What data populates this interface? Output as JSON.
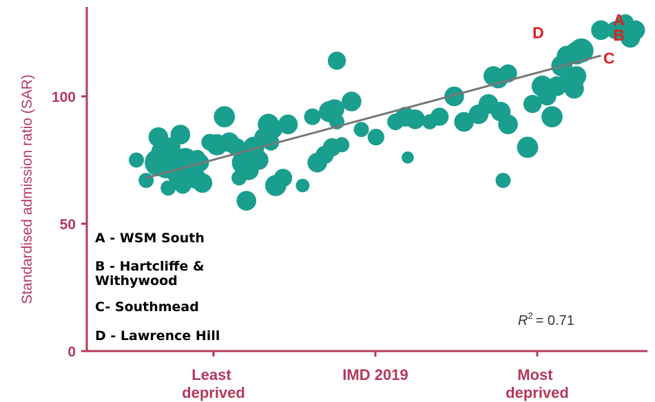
{
  "chart_data": {
    "type": "scatter",
    "ylabel": "Standardised admission ratio (SAR)",
    "xlabel": "IMD 2019",
    "x_tick_labels": [
      [
        "Least",
        "deprived"
      ],
      [
        "IMD 2019"
      ],
      [
        "Most",
        "deprived"
      ]
    ],
    "y_ticks": [
      "0",
      "50",
      "100"
    ],
    "ylim": [
      0,
      135
    ],
    "xlim": [
      0,
      100
    ],
    "grid": false,
    "trendline": {
      "x0": 2,
      "y0": 68,
      "x1": 95,
      "y1": 116
    },
    "r_squared_label": "R",
    "r_squared_sup": "2",
    "r_squared_value": "= 0.71",
    "legend": [
      [
        "A - WSM South"
      ],
      [
        "B - Hartcliffe &",
        "Withywood"
      ],
      [
        "C- Southmead"
      ],
      [
        "D - Lawrence Hill"
      ]
    ],
    "point_labels": [
      {
        "text": "A",
        "x": 97.5,
        "y": 130
      },
      {
        "text": "B",
        "x": 97.5,
        "y": 124
      },
      {
        "text": "C",
        "x": 95.5,
        "y": 115
      },
      {
        "text": "D",
        "x": 81,
        "y": 125
      }
    ],
    "marker_color": "#1a9e8e",
    "trend_color": "#777777",
    "axis_color": "#b5395a",
    "points": [
      [
        0,
        75,
        1
      ],
      [
        2,
        67,
        1
      ],
      [
        4.5,
        84,
        1.3
      ],
      [
        5.5,
        78,
        1.6
      ],
      [
        4.5,
        74,
        1.8
      ],
      [
        6,
        72,
        1.4
      ],
      [
        7,
        80,
        1.3
      ],
      [
        6.5,
        64,
        1
      ],
      [
        9,
        85,
        1.3
      ],
      [
        8.5,
        70,
        1.5
      ],
      [
        10,
        75,
        1.6
      ],
      [
        9.5,
        65,
        1.1
      ],
      [
        12,
        68,
        1.4
      ],
      [
        13,
        74,
        1.2
      ],
      [
        13.5,
        66,
        1.3
      ],
      [
        12.5,
        76,
        1
      ],
      [
        15,
        82,
        1.1
      ],
      [
        16.5,
        81,
        1.4
      ],
      [
        18,
        92,
        1.4
      ],
      [
        19,
        82,
        1.3
      ],
      [
        20.5,
        80,
        1.2
      ],
      [
        22,
        77,
        1.2
      ],
      [
        21,
        68,
        1
      ],
      [
        22,
        74,
        1.6
      ],
      [
        23,
        71,
        1.3
      ],
      [
        22.5,
        59,
        1.3
      ],
      [
        24,
        80,
        1.4
      ],
      [
        25,
        75,
        1.3
      ],
      [
        26,
        84,
        1.2
      ],
      [
        27,
        89,
        1.4
      ],
      [
        28,
        87,
        1.2
      ],
      [
        27.5,
        82,
        1.1
      ],
      [
        28.5,
        65,
        1.4
      ],
      [
        30,
        68,
        1.2
      ],
      [
        31,
        89,
        1.3
      ],
      [
        34,
        65,
        0.9
      ],
      [
        36,
        92,
        1.1
      ],
      [
        37,
        74,
        1.3
      ],
      [
        38.5,
        77,
        1.2
      ],
      [
        39.5,
        94,
        1.4
      ],
      [
        40.5,
        95,
        1.3
      ],
      [
        41,
        90,
        1
      ],
      [
        40,
        80,
        1.2
      ],
      [
        42,
        81,
        1
      ],
      [
        41,
        114,
        1.2
      ],
      [
        44,
        98,
        1.3
      ],
      [
        46,
        87,
        1
      ],
      [
        49,
        84,
        1.1
      ],
      [
        53,
        90,
        1.1
      ],
      [
        55,
        92,
        1.3
      ],
      [
        55.5,
        76,
        0.8
      ],
      [
        57,
        91,
        1.3
      ],
      [
        60,
        90,
        1
      ],
      [
        62,
        92,
        1.2
      ],
      [
        65,
        100,
        1.3
      ],
      [
        67,
        90,
        1.3
      ],
      [
        70,
        93,
        1.3
      ],
      [
        72,
        97,
        1.3
      ],
      [
        73,
        108,
        1.3
      ],
      [
        74,
        107,
        1.3
      ],
      [
        74.5,
        94,
        1.3
      ],
      [
        75,
        67,
        1
      ],
      [
        76,
        109,
        1.2
      ],
      [
        76,
        89,
        1.3
      ],
      [
        80,
        80,
        1.4
      ],
      [
        81,
        97,
        1.2
      ],
      [
        83,
        104,
        1.4
      ],
      [
        84,
        100,
        1.2
      ],
      [
        85,
        92,
        1.4
      ],
      [
        86,
        104,
        1.3
      ],
      [
        87,
        112,
        1.4
      ],
      [
        88,
        116,
        1.3
      ],
      [
        89,
        106,
        1.6
      ],
      [
        89.5,
        103,
        1.3
      ],
      [
        90,
        117,
        1.5
      ],
      [
        90,
        108,
        1.3
      ],
      [
        91,
        118,
        1.6
      ],
      [
        95,
        126,
        1.3
      ],
      [
        98,
        126,
        1.2
      ],
      [
        100,
        126,
        1.4
      ],
      [
        100,
        129,
        1.1
      ],
      [
        101,
        123,
        1.3
      ],
      [
        102,
        126,
        1.3
      ]
    ]
  }
}
